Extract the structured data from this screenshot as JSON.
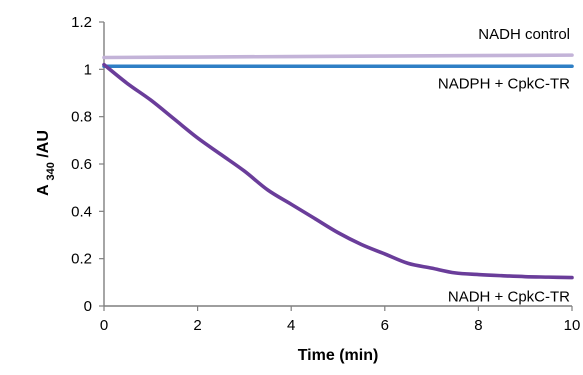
{
  "chart_data": {
    "type": "line",
    "title": "",
    "xlabel": "Time (min)",
    "ylabel": {
      "main": "A",
      "subscript": "340",
      "suffix": "/AU"
    },
    "xlim": [
      0,
      10
    ],
    "ylim": [
      0,
      1.2
    ],
    "x_ticks": [
      0,
      2,
      4,
      6,
      8,
      10
    ],
    "x_tick_labels": [
      "0",
      "2",
      "4",
      "6",
      "8",
      "10"
    ],
    "y_ticks": [
      0,
      0.2,
      0.4,
      0.6,
      0.8,
      1.0,
      1.2
    ],
    "y_tick_labels": [
      "0",
      "0.2",
      "0.4",
      "0.6",
      "0.8",
      "1",
      "1.2"
    ],
    "grid": false,
    "legend": "inline labels at right end of each line",
    "series": [
      {
        "name": "NADH control",
        "color": "#c3b3d8",
        "x": [
          0,
          2,
          4,
          6,
          8,
          10
        ],
        "y": [
          1.05,
          1.052,
          1.054,
          1.056,
          1.058,
          1.06
        ]
      },
      {
        "name": "NADPH + CpkC-TR",
        "color": "#2e7fc5",
        "x": [
          0,
          2,
          4,
          6,
          8,
          10
        ],
        "y": [
          1.013,
          1.013,
          1.013,
          1.013,
          1.013,
          1.013
        ]
      },
      {
        "name": "NADH + CpkC-TR",
        "color": "#6a3d9a",
        "x": [
          0,
          0.5,
          1,
          1.5,
          2,
          2.5,
          3,
          3.5,
          4,
          4.5,
          5,
          5.5,
          6,
          6.5,
          7,
          7.5,
          8,
          8.5,
          9,
          9.5,
          10
        ],
        "y": [
          1.02,
          0.94,
          0.87,
          0.79,
          0.71,
          0.64,
          0.57,
          0.49,
          0.43,
          0.37,
          0.31,
          0.26,
          0.22,
          0.18,
          0.16,
          0.14,
          0.133,
          0.128,
          0.124,
          0.122,
          0.12
        ]
      }
    ]
  }
}
